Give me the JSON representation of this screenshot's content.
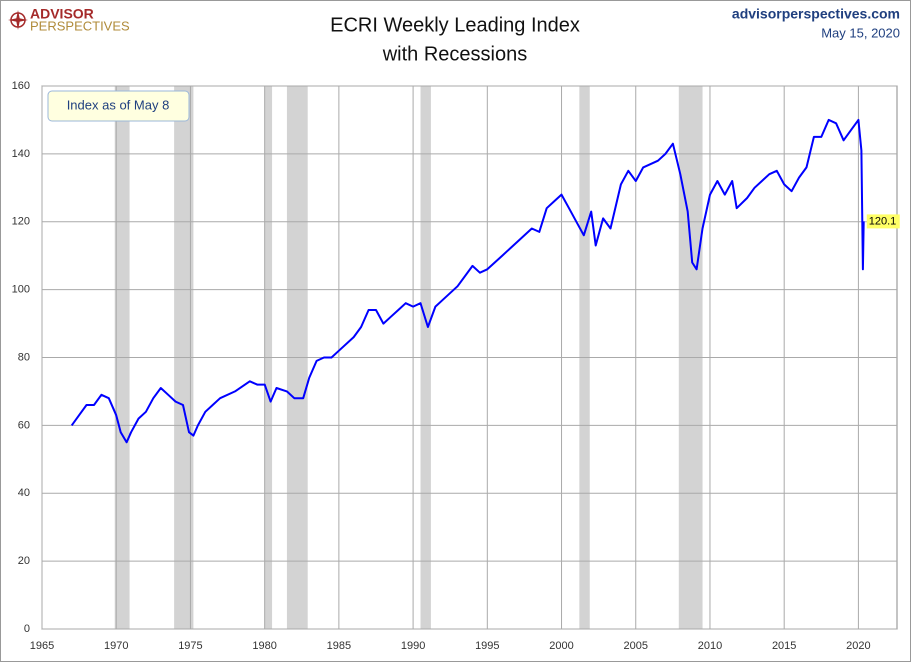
{
  "chart_data": {
    "type": "line",
    "title": "ECRI Weekly Leading Index",
    "subtitle": "with Recessions",
    "brand": "ADVISOR",
    "brand_sub": "PERSPECTIVES",
    "site": "advisorperspectives.com",
    "date": "May 15, 2020",
    "annotation": "Index as of May 8",
    "color": "#0000ff",
    "recession_color": "#d3d3d3",
    "grid": true,
    "x": [
      1967.0,
      1967.5,
      1968.0,
      1968.5,
      1969.0,
      1969.5,
      1970.0,
      1970.3,
      1970.7,
      1971.0,
      1971.5,
      1972.0,
      1972.5,
      1973.0,
      1973.5,
      1974.0,
      1974.5,
      1974.9,
      1975.2,
      1975.5,
      1976.0,
      1976.5,
      1977.0,
      1978.0,
      1979.0,
      1979.5,
      1980.0,
      1980.4,
      1980.8,
      1981.5,
      1982.0,
      1982.6,
      1983.0,
      1983.5,
      1984.0,
      1984.5,
      1985.0,
      1986.0,
      1986.5,
      1987.0,
      1987.5,
      1988.0,
      1988.5,
      1989.0,
      1989.5,
      1990.0,
      1990.5,
      1991.0,
      1991.5,
      1992.0,
      1993.0,
      1994.0,
      1994.5,
      1995.0,
      1996.0,
      1997.0,
      1998.0,
      1998.5,
      1999.0,
      1999.5,
      2000.0,
      2000.5,
      2001.0,
      2001.5,
      2002.0,
      2002.3,
      2002.8,
      2003.3,
      2004.0,
      2004.5,
      2005.0,
      2005.5,
      2006.0,
      2006.5,
      2007.0,
      2007.5,
      2008.0,
      2008.5,
      2008.8,
      2009.1,
      2009.5,
      2010.0,
      2010.5,
      2011.0,
      2011.5,
      2011.8,
      2012.5,
      2013.0,
      2013.5,
      2014.0,
      2014.5,
      2015.0,
      2015.5,
      2016.0,
      2016.5,
      2017.0,
      2017.5,
      2018.0,
      2018.5,
      2019.0,
      2019.5,
      2020.0,
      2020.2,
      2020.3,
      2020.36
    ],
    "values": [
      60,
      63,
      66,
      66,
      69,
      68,
      63,
      58,
      55,
      58,
      62,
      64,
      68,
      71,
      69,
      67,
      66,
      58,
      57,
      60,
      64,
      66,
      68,
      70,
      73,
      72,
      72,
      67,
      71,
      70,
      68,
      68,
      74,
      79,
      80,
      80,
      82,
      86,
      89,
      94,
      94,
      90,
      92,
      94,
      96,
      95,
      96,
      89,
      95,
      97,
      101,
      107,
      105,
      106,
      110,
      114,
      118,
      117,
      124,
      126,
      128,
      124,
      120,
      116,
      123,
      113,
      121,
      118,
      131,
      135,
      132,
      136,
      137,
      138,
      140,
      143,
      134,
      123,
      108,
      106,
      118,
      128,
      132,
      128,
      132,
      124,
      127,
      130,
      132,
      134,
      135,
      131,
      129,
      133,
      136,
      145,
      145,
      150,
      149,
      144,
      147,
      150,
      141,
      106,
      120.1
    ],
    "recessions": [
      [
        1969.9,
        1970.9
      ],
      [
        1973.9,
        1975.2
      ],
      [
        1980.0,
        1980.5
      ],
      [
        1981.5,
        1982.9
      ],
      [
        1990.5,
        1991.2
      ],
      [
        2001.2,
        2001.9
      ],
      [
        2007.9,
        2009.5
      ]
    ],
    "xlim": [
      1965,
      2022.6
    ],
    "xticks": [
      1965,
      1970,
      1975,
      1980,
      1985,
      1990,
      1995,
      2000,
      2005,
      2010,
      2015,
      2020
    ],
    "ylim": [
      0,
      160
    ],
    "yticks": [
      0,
      20,
      40,
      60,
      80,
      100,
      120,
      140,
      160
    ]
  }
}
